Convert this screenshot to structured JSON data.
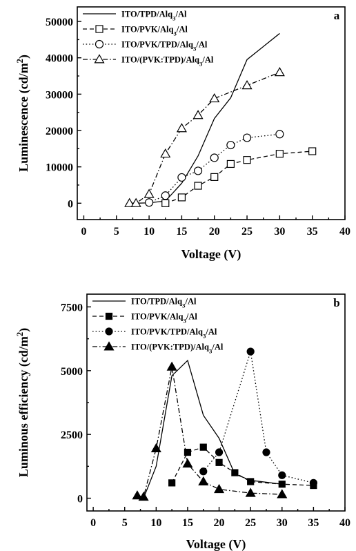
{
  "chart_data": [
    {
      "type": "line",
      "panel_label": "a",
      "xlabel": "Voltage (V)",
      "ylabel": "Luminescence  (cd/m²)",
      "xlim": [
        -1,
        40
      ],
      "ylim": [
        -4500,
        54000
      ],
      "xticks": [
        0,
        5,
        10,
        15,
        20,
        25,
        30,
        35,
        40
      ],
      "yticks": [
        0,
        10000,
        20000,
        30000,
        40000,
        50000
      ],
      "legend_position": "top-left",
      "series": [
        {
          "name": "ITO/TPD/Alq₃/Al",
          "marker": "none",
          "dash": "solid",
          "x": [
            8,
            10,
            12.5,
            15,
            17.5,
            20,
            22.5,
            25,
            30
          ],
          "y": [
            0,
            100,
            600,
            5500,
            13000,
            23300,
            29000,
            39500,
            46700
          ]
        },
        {
          "name": "ITO/PVK/Alq₃/Al",
          "marker": "open-square",
          "dash": "dash",
          "x": [
            12.5,
            15,
            17.5,
            20,
            22.5,
            25,
            30,
            35
          ],
          "y": [
            0,
            1600,
            4800,
            7200,
            10800,
            11900,
            13600,
            14300
          ]
        },
        {
          "name": "ITO/PVK/TPD/Alq₃/Al",
          "marker": "open-circle",
          "dash": "dot",
          "x": [
            10,
            12.5,
            15,
            17.5,
            20,
            22.5,
            25,
            30
          ],
          "y": [
            200,
            2100,
            7100,
            8900,
            12500,
            16000,
            18000,
            19000
          ]
        },
        {
          "name": "ITO/(PVK:TPD)/Alq₃/Al",
          "marker": "open-triangle",
          "dash": "dashdot",
          "x": [
            7,
            8,
            10,
            12.5,
            15,
            17.5,
            20,
            25,
            30
          ],
          "y": [
            0,
            0,
            2500,
            13600,
            20600,
            24200,
            28800,
            32400,
            36000
          ]
        }
      ]
    },
    {
      "type": "line",
      "panel_label": "b",
      "xlabel": "Voltage (V)",
      "ylabel": "Luminous efficiency  (cd/m²)",
      "xlim": [
        -1,
        40
      ],
      "ylim": [
        -500,
        8000
      ],
      "xticks": [
        0,
        5,
        10,
        15,
        20,
        25,
        30,
        35,
        40
      ],
      "yticks": [
        0,
        2500,
        5000,
        7500
      ],
      "legend_position": "top-left",
      "series": [
        {
          "name": "ITO/TPD/Alq₃/Al",
          "marker": "none",
          "dash": "solid",
          "x": [
            8,
            10,
            12.5,
            15,
            17.5,
            20,
            22.5,
            25,
            30
          ],
          "y": [
            0,
            1250,
            4800,
            5400,
            3250,
            2350,
            950,
            700,
            550
          ]
        },
        {
          "name": "ITO/PVK/Alq₃/Al",
          "marker": "filled-square",
          "dash": "dash",
          "x": [
            12.5,
            15,
            17.5,
            20,
            22.5,
            25,
            30,
            35
          ],
          "y": [
            600,
            1800,
            2000,
            1400,
            1000,
            650,
            550,
            500
          ]
        },
        {
          "name": "ITO/PVK/TPD/Alq₃/Al",
          "marker": "filled-circle",
          "dash": "dot",
          "x": [
            17.5,
            20,
            25,
            27.5,
            30,
            35
          ],
          "y": [
            1050,
            1800,
            5750,
            1800,
            900,
            600
          ]
        },
        {
          "name": "ITO/(PVK:TPD)/Alq₃/Al",
          "marker": "filled-triangle",
          "dash": "dashdot",
          "x": [
            7,
            8,
            10,
            12.5,
            15,
            17.5,
            20,
            25,
            30
          ],
          "y": [
            100,
            50,
            1950,
            5150,
            1350,
            650,
            350,
            200,
            150
          ]
        }
      ]
    }
  ]
}
